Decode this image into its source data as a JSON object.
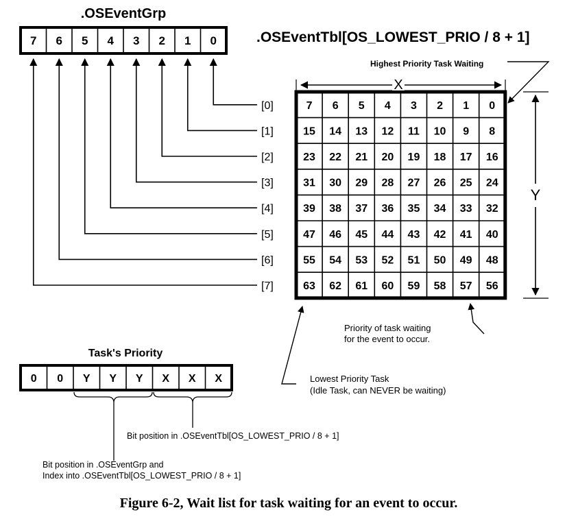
{
  "event_group": {
    "title": ".OSEventGrp",
    "bits": [
      "7",
      "6",
      "5",
      "4",
      "3",
      "2",
      "1",
      "0"
    ]
  },
  "event_table": {
    "title": ".OSEventTbl[OS_LOWEST_PRIO / 8 + 1]",
    "row_indices": [
      "[0]",
      "[1]",
      "[2]",
      "[3]",
      "[4]",
      "[5]",
      "[6]",
      "[7]"
    ],
    "rows": [
      [
        "7",
        "6",
        "5",
        "4",
        "3",
        "2",
        "1",
        "0"
      ],
      [
        "15",
        "14",
        "13",
        "12",
        "11",
        "10",
        "9",
        "8"
      ],
      [
        "23",
        "22",
        "21",
        "20",
        "19",
        "18",
        "17",
        "16"
      ],
      [
        "31",
        "30",
        "29",
        "28",
        "27",
        "26",
        "25",
        "24"
      ],
      [
        "39",
        "38",
        "37",
        "36",
        "35",
        "34",
        "33",
        "32"
      ],
      [
        "47",
        "46",
        "45",
        "44",
        "43",
        "42",
        "41",
        "40"
      ],
      [
        "55",
        "54",
        "53",
        "52",
        "51",
        "50",
        "49",
        "48"
      ],
      [
        "63",
        "62",
        "61",
        "60",
        "59",
        "58",
        "57",
        "56"
      ]
    ],
    "x_label": "X",
    "y_label": "Y"
  },
  "annotations": {
    "highest_priority": "Highest Priority Task Waiting",
    "priority_waiting": [
      "Priority of task waiting",
      "for the event to occur."
    ],
    "lowest_priority": [
      "Lowest Priority Task",
      "(Idle Task, can NEVER be waiting)"
    ],
    "bit_position_table": "Bit position in .OSEventTbl[OS_LOWEST_PRIO / 8 + 1]",
    "bit_position_group": [
      "Bit position  in .OSEventGrp and",
      "Index into .OSEventTbl[OS_LOWEST_PRIO / 8 + 1]"
    ]
  },
  "task_priority": {
    "title": "Task's Priority",
    "bits": [
      "0",
      "0",
      "Y",
      "Y",
      "Y",
      "X",
      "X",
      "X"
    ]
  },
  "caption": "Figure 6-2, Wait list for task waiting for an event to occur."
}
